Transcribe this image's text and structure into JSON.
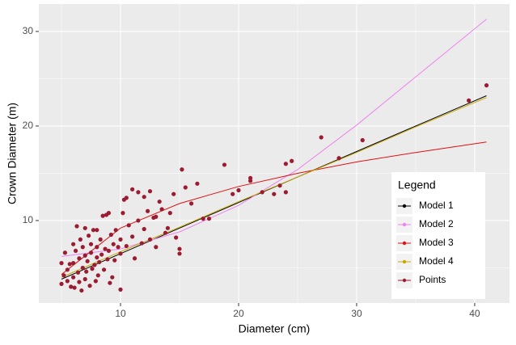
{
  "chart_data": {
    "type": "line",
    "x_label": "Diameter (cm)",
    "y_label": "Crown Diameter (m)",
    "legend_title": "Legend",
    "legend_position": "bottom-right",
    "xlim": [
      3.08,
      42.95
    ],
    "ylim": [
      1.28,
      32.9
    ],
    "xticks": [
      10,
      20,
      30,
      40
    ],
    "yticks": [
      10,
      20,
      30
    ],
    "grid": true,
    "series": [
      {
        "name": "Model 1",
        "color": "#000000",
        "x": [
          5,
          10,
          15,
          20,
          25,
          30,
          35,
          41
        ],
        "values": [
          3.8,
          6.5,
          9.2,
          11.9,
          14.6,
          17.3,
          20.0,
          23.2
        ]
      },
      {
        "name": "Model 2",
        "color": "#ee82ee",
        "x": [
          5,
          10,
          15,
          20,
          25,
          30,
          35,
          41
        ],
        "values": [
          6.2,
          7.0,
          8.8,
          11.6,
          15.4,
          20.1,
          25.2,
          31.3
        ]
      },
      {
        "name": "Model 3",
        "color": "#dd1111",
        "x": [
          5,
          10,
          15,
          20,
          25,
          30,
          35,
          41
        ],
        "values": [
          4.3,
          9.2,
          11.8,
          13.6,
          15.0,
          16.2,
          17.2,
          18.3
        ]
      },
      {
        "name": "Model 4",
        "color": "#c8a800",
        "x": [
          5,
          10,
          15,
          20,
          25,
          30,
          35,
          41
        ],
        "values": [
          4.0,
          6.7,
          9.3,
          12.0,
          14.6,
          17.2,
          19.9,
          23.0
        ]
      },
      {
        "name": "Points",
        "type": "scatter",
        "color": "#9b1b30",
        "x": [
          5,
          5,
          5.2,
          5.3,
          5.5,
          5.5,
          5.7,
          5.8,
          6,
          6,
          6,
          6.1,
          6.2,
          6.3,
          6.4,
          6.5,
          6.5,
          6.6,
          6.7,
          6.8,
          6.8,
          7,
          7,
          7,
          7.1,
          7.2,
          7.3,
          7.4,
          7.5,
          7.5,
          7.6,
          7.7,
          7.8,
          7.9,
          8,
          8,
          8,
          8.1,
          8.2,
          8.3,
          8.4,
          8.5,
          8.6,
          8.7,
          8.8,
          8.9,
          9,
          9,
          9.1,
          9.2,
          9.3,
          9.4,
          9.5,
          9.6,
          9.8,
          10,
          10,
          10,
          10.2,
          10.3,
          10.5,
          10.5,
          10.7,
          11,
          11,
          11.2,
          11.5,
          11.5,
          11.8,
          12,
          12,
          12.3,
          12.5,
          12.5,
          12.8,
          13,
          13,
          13.3,
          13.5,
          13.8,
          14,
          14.2,
          14.5,
          14.7,
          15,
          15,
          15.2,
          15.5,
          16,
          16.5,
          17,
          17.5,
          18.8,
          19.5,
          20,
          21,
          21,
          22,
          23,
          23.5,
          24,
          24,
          24.5,
          27,
          28.5,
          30.5,
          39.5,
          41
        ],
        "values": [
          5.5,
          3.3,
          4.2,
          6.6,
          3.6,
          4.8,
          5.4,
          3.0,
          4.0,
          5.5,
          7.5,
          2.9,
          6.8,
          9.4,
          4.5,
          3.5,
          6.0,
          8.0,
          2.6,
          5.0,
          7.2,
          3.8,
          6.3,
          9.2,
          4.6,
          5.7,
          8.4,
          3.1,
          6.6,
          7.5,
          4.9,
          9.0,
          5.3,
          3.6,
          6.1,
          7.2,
          9.0,
          4.2,
          5.6,
          8.0,
          6.4,
          10.5,
          4.8,
          7.0,
          10.6,
          5.9,
          10.8,
          6.8,
          3.4,
          8.5,
          4.0,
          7.5,
          5.8,
          9.0,
          7.2,
          2.7,
          8.0,
          6.5,
          10.8,
          12.2,
          12.4,
          7.3,
          9.5,
          13.3,
          8.3,
          6.0,
          13.0,
          10.0,
          7.6,
          12.5,
          9.1,
          11.0,
          13.1,
          8.0,
          10.3,
          10.4,
          7.2,
          12.0,
          11.2,
          8.7,
          9.2,
          10.8,
          12.8,
          8.2,
          6.5,
          7.0,
          15.4,
          13.5,
          11.8,
          13.9,
          10.2,
          10.2,
          15.9,
          12.8,
          13.2,
          14.5,
          14.2,
          13.0,
          12.8,
          13.7,
          13.0,
          16.0,
          16.3,
          18.8,
          16.6,
          18.5,
          22.7,
          24.3
        ]
      }
    ]
  }
}
